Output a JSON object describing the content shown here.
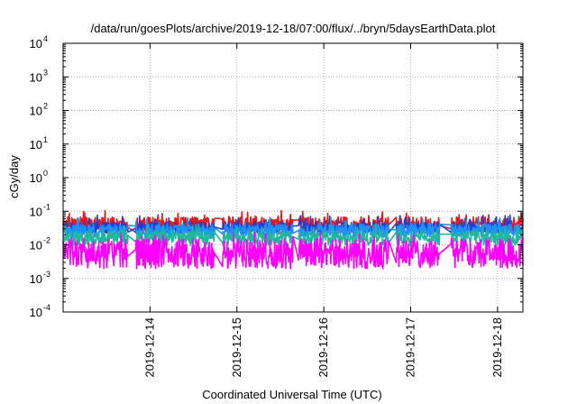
{
  "chart_data": {
    "type": "line",
    "title": "/data/run/goesPlots/archive/2019-12-18/07:00/flux/../bryn/5daysEarthData.plot",
    "xlabel": "Coordinated Universal Time (UTC)",
    "ylabel": "cGy/day",
    "yscale": "log",
    "ylim": [
      0.0001,
      10000
    ],
    "xlim": [
      "2019-12-13 00:00",
      "2019-12-18 07:00"
    ],
    "grid": true,
    "y_ticks": [
      {
        "base": "10",
        "exp": "-4",
        "value": 0.0001
      },
      {
        "base": "10",
        "exp": "-3",
        "value": 0.001
      },
      {
        "base": "10",
        "exp": "-2",
        "value": 0.01
      },
      {
        "base": "10",
        "exp": "-1",
        "value": 0.1
      },
      {
        "base": "10",
        "exp": "0",
        "value": 1
      },
      {
        "base": "10",
        "exp": "1",
        "value": 10
      },
      {
        "base": "10",
        "exp": "2",
        "value": 100
      },
      {
        "base": "10",
        "exp": "3",
        "value": 1000
      },
      {
        "base": "10",
        "exp": "4",
        "value": 10000
      }
    ],
    "x_ticks": [
      {
        "label": "2019-12-14",
        "value": "2019-12-14 00:00"
      },
      {
        "label": "2019-12-15",
        "value": "2019-12-15 00:00"
      },
      {
        "label": "2019-12-16",
        "value": "2019-12-16 00:00"
      },
      {
        "label": "2019-12-17",
        "value": "2019-12-17 00:00"
      },
      {
        "label": "2019-12-18",
        "value": "2019-12-18 00:00"
      }
    ],
    "gaps": [
      [
        "2019-12-13 18:00",
        "2019-12-13 20:00"
      ],
      [
        "2019-12-14 18:00",
        "2019-12-14 20:00"
      ],
      [
        "2019-12-15 15:30",
        "2019-12-15 17:00"
      ],
      [
        "2019-12-16 18:00",
        "2019-12-16 20:00"
      ],
      [
        "2019-12-17 08:00",
        "2019-12-17 11:00"
      ]
    ],
    "series": [
      {
        "color": "#e41a1c",
        "base": 0.038,
        "spread": 0.5,
        "seed": 1
      },
      {
        "color": "#1f3fd0",
        "base": 0.032,
        "spread": 0.35,
        "seed": 2
      },
      {
        "color": "#1e90ff",
        "base": 0.026,
        "spread": 0.4,
        "seed": 3
      },
      {
        "color": "#1fb89a",
        "base": 0.016,
        "spread": 0.45,
        "seed": 4
      },
      {
        "color": "#ff00ff",
        "base": 0.0055,
        "spread": 0.9,
        "seed": 5
      }
    ]
  }
}
